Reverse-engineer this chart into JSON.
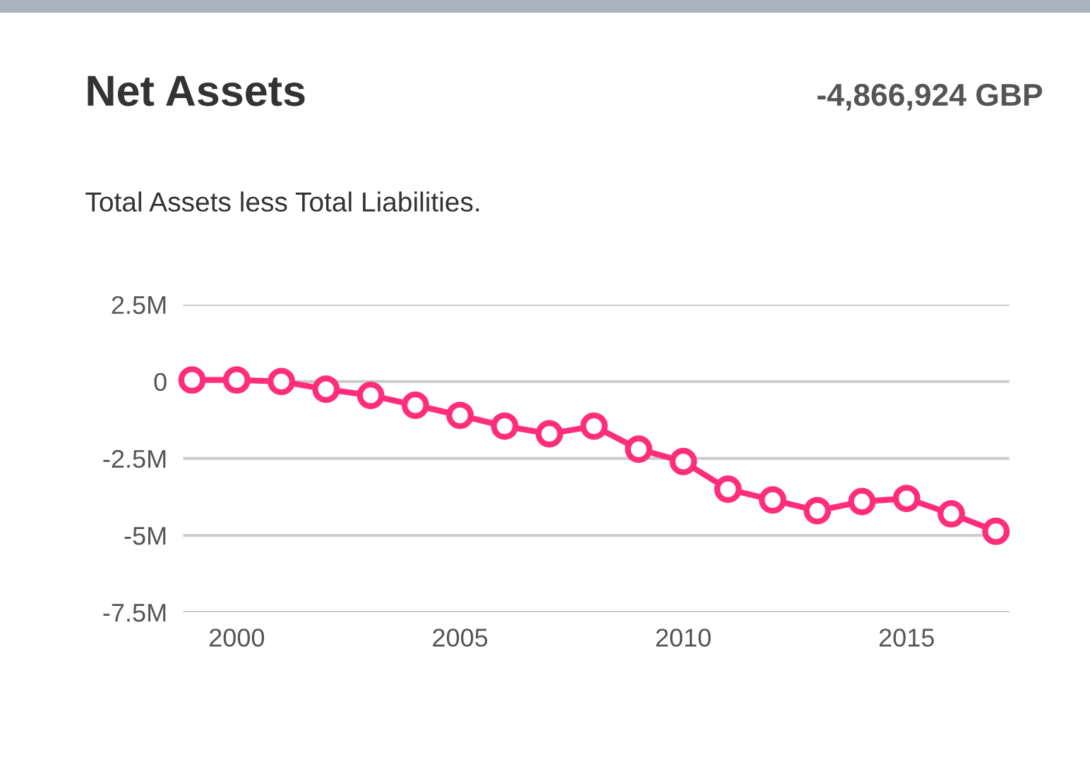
{
  "chart_data": {
    "type": "line",
    "title": "Net Assets",
    "subtitle": "Total Assets less Total Liabilities.",
    "annotations": [
      "-4,866,924 GBP"
    ],
    "x": [
      1999,
      2000,
      2001,
      2002,
      2003,
      2004,
      2005,
      2006,
      2007,
      2008,
      2009,
      2010,
      2011,
      2012,
      2013,
      2014,
      2015,
      2016,
      2017
    ],
    "series": [
      {
        "color": "#ff2d7a",
        "values": [
          50000,
          50000,
          0,
          -250000,
          -450000,
          -770000,
          -1100000,
          -1450000,
          -1700000,
          -1450000,
          -2200000,
          -2600000,
          -3500000,
          -3850000,
          -4200000,
          -3900000,
          -3800000,
          -4300000,
          -4866924
        ]
      }
    ],
    "xlim": [
      1998.8,
      2017.3
    ],
    "xticks": [
      2000,
      2005,
      2010,
      2015
    ],
    "ylim": [
      -7500000,
      2500000
    ],
    "yticks": [
      {
        "value": -7500000,
        "label": "-7.5M"
      },
      {
        "value": -5000000,
        "label": "-5M"
      },
      {
        "value": -2500000,
        "label": "-2.5M"
      },
      {
        "value": 0,
        "label": "0"
      },
      {
        "value": 2500000,
        "label": "2.5M"
      }
    ],
    "grid": "y",
    "marker": "circle",
    "line_style": "solid",
    "legend": false
  }
}
